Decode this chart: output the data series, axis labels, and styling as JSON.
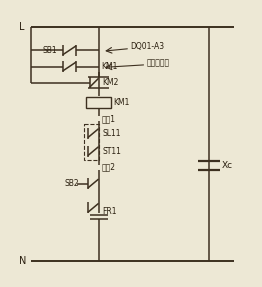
{
  "bg_color": "#ede8d5",
  "line_color": "#3d3020",
  "text_color": "#2a1f0f",
  "fig_width": 2.62,
  "fig_height": 2.87,
  "dpi": 100,
  "L_label": "L",
  "N_label": "N",
  "SB1_label": "SB1",
  "KM1_top_label": "KM1",
  "DQ01_label": "DQ01-A3",
  "jiachu_label": "交流接触器",
  "KM2_label": "KM2",
  "KM1_box_label": "KM1",
  "xianxin1_label": "线芯1",
  "SL11_label": "SL11",
  "ST11_label": "ST11",
  "xianxin2_label": "线芯2",
  "SB2_label": "SB2",
  "FR1_label": "FR1",
  "Xc_label": "Xc"
}
